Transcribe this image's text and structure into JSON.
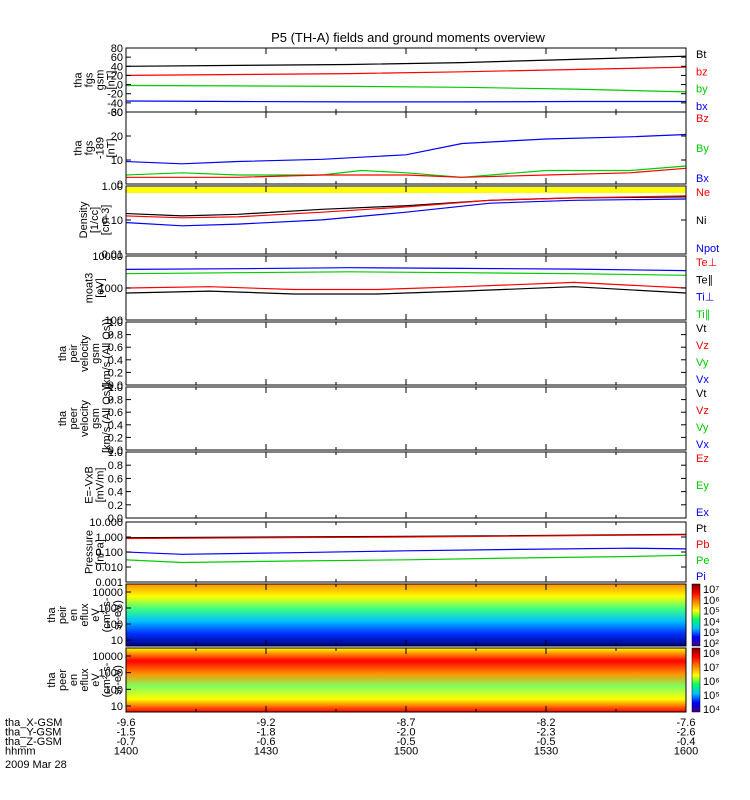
{
  "title": "P5 (TH-A) fields and ground moments overview",
  "colors": {
    "black": "#000000",
    "red": "#ff0000",
    "green": "#00cc00",
    "blue": "#0000ff",
    "yellow": "#ffff00"
  },
  "chart_data": {
    "type": "line",
    "time_range": [
      "1400",
      "1600"
    ],
    "panels": [
      {
        "ylabel": [
          "tha",
          "fgs",
          "gsm",
          "[nT]"
        ],
        "yticks": [
          "80",
          "60",
          "40",
          "20",
          "0",
          "-20",
          "-40",
          "-60"
        ],
        "ylim": [
          -60,
          80
        ],
        "log": false,
        "legend": [
          {
            "name": "Bt",
            "color": "black"
          },
          {
            "name": "bz",
            "color": "red"
          },
          {
            "name": "by",
            "color": "green"
          },
          {
            "name": "bx",
            "color": "blue"
          }
        ],
        "series": [
          {
            "color": "black",
            "x": [
              0,
              0.2,
              0.4,
              0.6,
              0.8,
              1
            ],
            "y": [
              40,
              42,
              44,
              48,
              55,
              62
            ]
          },
          {
            "color": "red",
            "x": [
              0,
              0.2,
              0.4,
              0.6,
              0.8,
              1
            ],
            "y": [
              20,
              22,
              24,
              28,
              33,
              38
            ]
          },
          {
            "color": "green",
            "x": [
              0,
              0.2,
              0.4,
              0.6,
              0.8,
              1
            ],
            "y": [
              -2,
              -3,
              -4,
              -6,
              -10,
              -16
            ]
          },
          {
            "color": "blue",
            "x": [
              0,
              0.2,
              0.4,
              0.6,
              0.8,
              1
            ],
            "y": [
              -36,
              -37,
              -38,
              -38,
              -37,
              -37
            ]
          }
        ]
      },
      {
        "ylabel": [
          "tha",
          "fgs",
          "-189",
          "[nT]"
        ],
        "yticks": [
          "30",
          "20",
          "10",
          "0"
        ],
        "ylim": [
          -2,
          30
        ],
        "log": false,
        "legend": [
          {
            "name": "Bz",
            "color": "red"
          },
          {
            "name": "By",
            "color": "green"
          },
          {
            "name": "Bx",
            "color": "blue"
          }
        ],
        "series": [
          {
            "color": "blue",
            "x": [
              0,
              0.1,
              0.2,
              0.35,
              0.5,
              0.6,
              0.75,
              0.9,
              1
            ],
            "y": [
              8,
              7,
              8,
              9,
              11,
              16,
              18,
              19,
              20
            ]
          },
          {
            "color": "green",
            "x": [
              0,
              0.1,
              0.2,
              0.35,
              0.42,
              0.5,
              0.6,
              0.75,
              0.9,
              1
            ],
            "y": [
              2,
              3,
              2,
              2,
              4,
              3,
              1,
              4,
              4,
              6
            ]
          },
          {
            "color": "red",
            "x": [
              0,
              0.2,
              0.35,
              0.5,
              0.6,
              0.75,
              0.9,
              1
            ],
            "y": [
              1,
              1,
              2,
              2,
              1,
              2,
              3,
              5
            ]
          }
        ]
      },
      {
        "ylabel": [
          "Density",
          "[1/cc]",
          "[cm-3]"
        ],
        "yticks": [
          "1.00",
          "0.10",
          "0.01"
        ],
        "ylim": [
          0.008,
          1.5
        ],
        "log": true,
        "legend": [
          {
            "name": "Ne",
            "color": "red"
          },
          {
            "name": "Ni",
            "color": "black"
          },
          {
            "name": "Npot",
            "color": "blue"
          }
        ],
        "series": [
          {
            "color": "black",
            "x": [
              0,
              0.1,
              0.2,
              0.35,
              0.5,
              0.65,
              0.8,
              1
            ],
            "y": [
              0.18,
              0.15,
              0.17,
              0.25,
              0.33,
              0.5,
              0.6,
              0.65
            ]
          },
          {
            "color": "red",
            "x": [
              0,
              0.1,
              0.2,
              0.35,
              0.5,
              0.65,
              0.8,
              1
            ],
            "y": [
              0.15,
              0.13,
              0.14,
              0.2,
              0.3,
              0.5,
              0.6,
              0.7
            ]
          },
          {
            "color": "blue",
            "x": [
              0,
              0.1,
              0.2,
              0.35,
              0.5,
              0.65,
              0.8,
              1
            ],
            "y": [
              0.09,
              0.07,
              0.08,
              0.11,
              0.2,
              0.4,
              0.5,
              0.55
            ]
          }
        ]
      },
      {
        "ylabel": [
          "moat3",
          "[eV]"
        ],
        "yticks": [
          "10000",
          "1000",
          "100"
        ],
        "ylim": [
          100,
          10000
        ],
        "log": true,
        "legend": [
          {
            "name": "Te⊥",
            "color": "red"
          },
          {
            "name": "Te∥",
            "color": "black"
          },
          {
            "name": "Ti⊥",
            "color": "blue"
          },
          {
            "name": "Ti∥",
            "color": "green"
          }
        ],
        "series": [
          {
            "color": "blue",
            "x": [
              0,
              0.2,
              0.4,
              0.6,
              0.8,
              1
            ],
            "y": [
              3800,
              4000,
              4300,
              4100,
              3900,
              3500
            ]
          },
          {
            "color": "green",
            "x": [
              0,
              0.2,
              0.4,
              0.6,
              0.8,
              1
            ],
            "y": [
              2800,
              3000,
              3200,
              3000,
              2800,
              2500
            ]
          },
          {
            "color": "red",
            "x": [
              0,
              0.15,
              0.3,
              0.45,
              0.6,
              0.8,
              1
            ],
            "y": [
              1000,
              1100,
              900,
              900,
              1100,
              1500,
              1000
            ]
          },
          {
            "color": "black",
            "x": [
              0,
              0.15,
              0.3,
              0.45,
              0.6,
              0.8,
              1
            ],
            "y": [
              700,
              800,
              650,
              650,
              800,
              1100,
              700
            ]
          }
        ]
      },
      {
        "ylabel": [
          "tha",
          "peir",
          "velocity",
          "gsm",
          "(km/s (All Qs))"
        ],
        "yticks": [
          "1.0",
          "0.8",
          "0.6",
          "0.4",
          "0.2",
          "0.0"
        ],
        "ylim": [
          0,
          1
        ],
        "log": false,
        "legend": [
          {
            "name": "Vt",
            "color": "black"
          },
          {
            "name": "Vz",
            "color": "red"
          },
          {
            "name": "Vy",
            "color": "green"
          },
          {
            "name": "Vx",
            "color": "blue"
          }
        ],
        "series": []
      },
      {
        "ylabel": [
          "tha",
          "peer",
          "velocity",
          "gsm",
          "[km/s (All Qs)]"
        ],
        "yticks": [
          "1.0",
          "0.8",
          "0.6",
          "0.4",
          "0.2",
          "0.0"
        ],
        "ylim": [
          0,
          1
        ],
        "log": false,
        "legend": [
          {
            "name": "Vt",
            "color": "black"
          },
          {
            "name": "Vz",
            "color": "red"
          },
          {
            "name": "Vy",
            "color": "green"
          },
          {
            "name": "Vx",
            "color": "blue"
          }
        ],
        "series": []
      },
      {
        "ylabel": [
          "E=-VxB",
          "[mV/m]"
        ],
        "yticks": [
          "1.0",
          "0.8",
          "0.6",
          "0.4",
          "0.2",
          "0.0"
        ],
        "ylim": [
          0,
          1
        ],
        "log": false,
        "legend": [
          {
            "name": "Ez",
            "color": "red"
          },
          {
            "name": "Ey",
            "color": "green"
          },
          {
            "name": "Ex",
            "color": "blue"
          }
        ],
        "series": []
      },
      {
        "ylabel": [
          "Pressure",
          "[nPa]"
        ],
        "yticks": [
          "10.000",
          "1.000",
          "0.100",
          "0.010",
          "0.001"
        ],
        "ylim": [
          0.001,
          10
        ],
        "log": true,
        "legend": [
          {
            "name": "Pt",
            "color": "black"
          },
          {
            "name": "Pb",
            "color": "red"
          },
          {
            "name": "Pe",
            "color": "green"
          },
          {
            "name": "Pi",
            "color": "blue"
          }
        ],
        "series": [
          {
            "color": "black",
            "x": [
              0,
              0.5,
              1
            ],
            "y": [
              0.9,
              1.1,
              1.5
            ]
          },
          {
            "color": "red",
            "x": [
              0,
              0.5,
              1
            ],
            "y": [
              0.8,
              1.0,
              1.4
            ]
          },
          {
            "color": "blue",
            "x": [
              0,
              0.1,
              0.3,
              0.5,
              0.7,
              0.9,
              1
            ],
            "y": [
              0.1,
              0.07,
              0.09,
              0.12,
              0.15,
              0.18,
              0.16
            ]
          },
          {
            "color": "green",
            "x": [
              0,
              0.1,
              0.3,
              0.5,
              0.7,
              0.9,
              1
            ],
            "y": [
              0.03,
              0.02,
              0.025,
              0.03,
              0.04,
              0.05,
              0.06
            ]
          }
        ]
      }
    ],
    "spectrograms": [
      {
        "ylabel": [
          "tha",
          "peir",
          "en",
          "eflux",
          "eV",
          "(cm²-s-",
          "sr-eV)"
        ],
        "yticks": [
          "10000",
          "1000",
          "100",
          "10"
        ],
        "colorbar_ticks": [
          "10⁷",
          "10⁶",
          "10⁵",
          "10⁴",
          "10³",
          "10²"
        ]
      },
      {
        "ylabel": [
          "tha",
          "peer",
          "en",
          "eflux",
          "eV",
          "(cm²-s-",
          "sr-eV)"
        ],
        "yticks": [
          "10000",
          "1000",
          "100",
          "10"
        ],
        "colorbar_ticks": [
          "10⁸",
          "10⁷",
          "10⁶",
          "10⁵",
          "10⁴"
        ]
      }
    ],
    "xaxis": {
      "rows": [
        {
          "label": "tha_X-GSM",
          "values": [
            "-9.6",
            "-9.2",
            "-8.7",
            "-8.2",
            "-7.6"
          ]
        },
        {
          "label": "tha_Y-GSM",
          "values": [
            "-1.5",
            "-1.8",
            "-2.0",
            "-2.3",
            "-2.6"
          ]
        },
        {
          "label": "tha_Z-GSM",
          "values": [
            "-0.7",
            "-0.6",
            "-0.5",
            "-0.5",
            "-0.4"
          ]
        },
        {
          "label": "hhmm",
          "values": [
            "1400",
            "1430",
            "1500",
            "1530",
            "1600"
          ]
        }
      ],
      "date": "2009 Mar 28"
    }
  }
}
